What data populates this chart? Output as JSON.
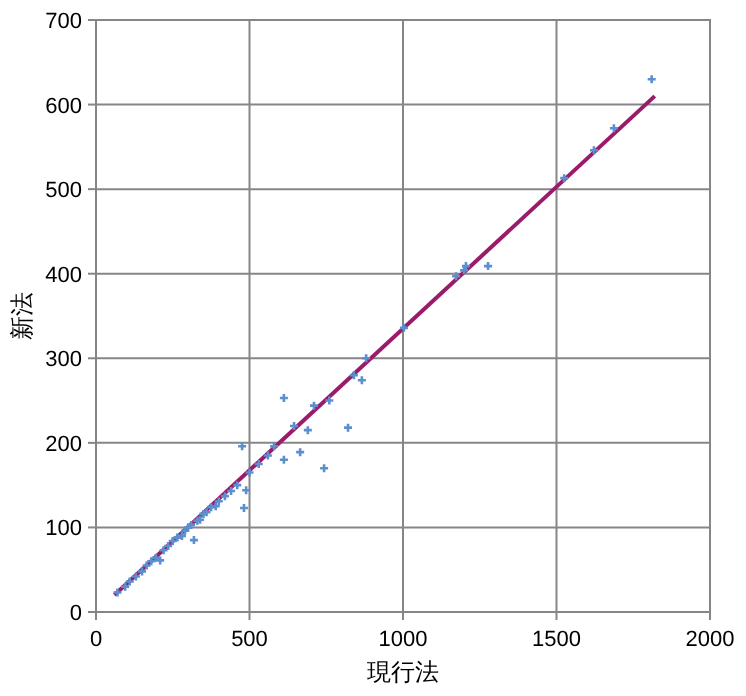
{
  "chart_data": {
    "type": "scatter",
    "xlabel": "現行法",
    "ylabel": "新法",
    "xlim": [
      0,
      2000
    ],
    "ylim": [
      0,
      700
    ],
    "xticks": [
      0,
      500,
      1000,
      1500,
      2000
    ],
    "yticks": [
      0,
      100,
      200,
      300,
      400,
      500,
      600,
      700
    ],
    "grid": true,
    "series": [
      {
        "color": "#5b8fd0",
        "marker": "cross",
        "x": [
          70,
          95,
          110,
          130,
          150,
          165,
          180,
          195,
          209,
          220,
          235,
          250,
          265,
          280,
          290,
          300,
          310,
          319,
          330,
          339,
          350,
          360,
          375,
          390,
          400,
          420,
          440,
          460,
          476,
          482,
          489,
          500,
          530,
          560,
          580,
          612,
          612,
          645,
          665,
          690,
          710,
          743,
          760,
          821,
          840,
          866,
          880,
          1003,
          1173,
          1199,
          1205,
          1277,
          1525,
          1622,
          1687,
          1810
        ],
        "values": [
          23,
          30,
          36,
          42,
          48,
          55,
          60,
          64,
          61,
          73,
          78,
          84,
          88,
          90,
          96,
          100,
          103,
          85,
          108,
          109,
          116,
          118,
          124,
          125,
          131,
          137,
          143,
          150,
          196,
          123,
          144,
          165,
          175,
          185,
          196,
          180,
          253,
          220,
          189,
          215,
          244,
          170,
          250,
          218,
          280,
          274,
          300,
          336,
          397,
          404,
          409,
          409,
          513,
          546,
          572,
          630
        ]
      },
      {
        "type": "line",
        "color": "#9b1b6b",
        "x": [
          60,
          1820
        ],
        "values": [
          20,
          610
        ],
        "line_style": "solid"
      }
    ]
  }
}
